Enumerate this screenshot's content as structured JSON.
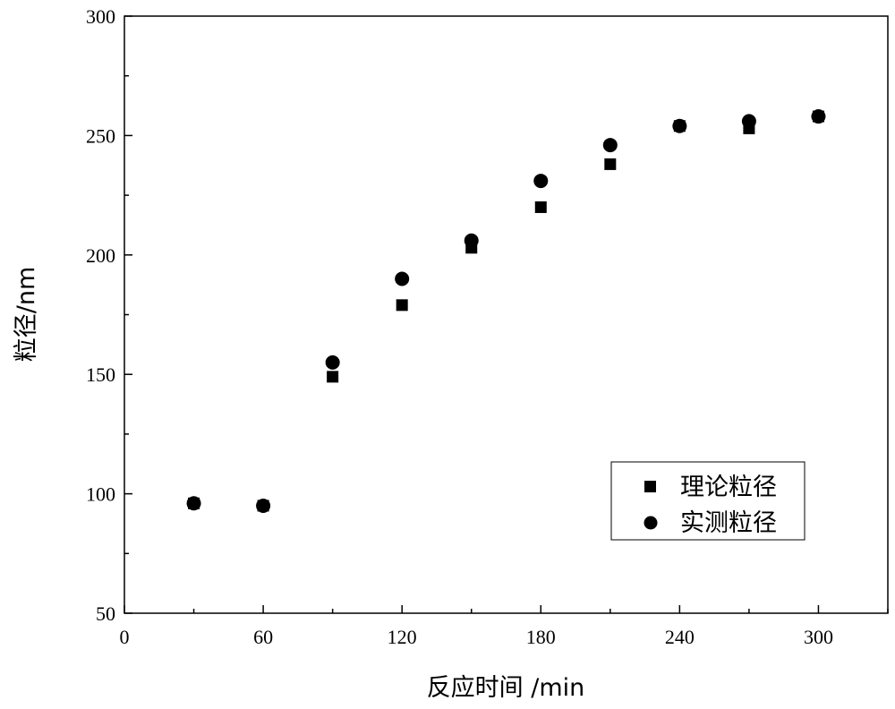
{
  "chart_data": {
    "type": "scatter",
    "title": "",
    "xlabel": "反应时间 /min",
    "ylabel": "粒径/nm",
    "xlim": [
      0,
      330
    ],
    "ylim": [
      50,
      300
    ],
    "xticks": [
      0,
      60,
      120,
      180,
      240,
      300
    ],
    "yticks": [
      50,
      100,
      150,
      200,
      250,
      300
    ],
    "grid": false,
    "legend_position": "bottom-right",
    "series": [
      {
        "name": "理论粒径",
        "marker": "square",
        "x": [
          30,
          60,
          90,
          120,
          150,
          180,
          210,
          240,
          270,
          300
        ],
        "y": [
          96,
          95,
          149,
          179,
          203,
          220,
          238,
          254,
          253,
          258
        ]
      },
      {
        "name": "实测粒径",
        "marker": "circle",
        "x": [
          30,
          60,
          90,
          120,
          150,
          180,
          210,
          240,
          270,
          300
        ],
        "y": [
          96,
          95,
          155,
          190,
          206,
          231,
          246,
          254,
          256,
          258
        ]
      }
    ]
  }
}
